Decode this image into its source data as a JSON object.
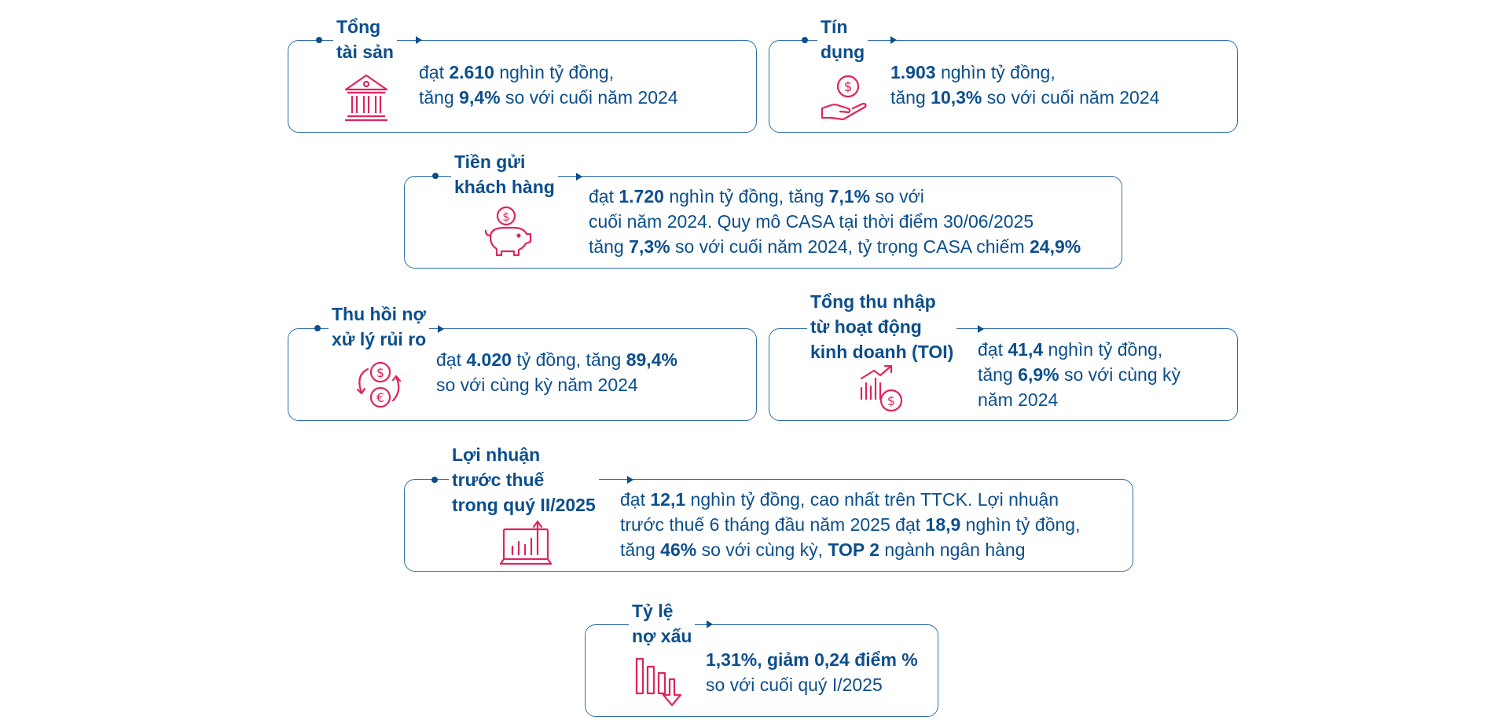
{
  "colors": {
    "primary": "#0b4e8c",
    "border": "#2f6fa8",
    "icon_accent": "#e0245e"
  },
  "cards": {
    "total_assets": {
      "title": "Tổng\ntài sản",
      "icon": "bank-icon",
      "lines": [
        [
          "đạt ",
          "2.610",
          " nghìn tỷ đồng,"
        ],
        [
          "tăng ",
          "9,4%",
          " so với cuối năm 2024"
        ]
      ]
    },
    "credit": {
      "title": "Tín\ndụng",
      "icon": "hand-coin-icon",
      "lines": [
        [
          "",
          "1.903",
          " nghìn tỷ đồng,"
        ],
        [
          "tăng ",
          "10,3%",
          " so với cuối năm 2024"
        ]
      ]
    },
    "deposits": {
      "title": "Tiền gửi\nkhách hàng",
      "icon": "piggy-bank-icon",
      "lines": [
        [
          "đạt ",
          "1.720",
          " nghìn tỷ đồng, tăng ",
          "7,1%",
          " so với"
        ],
        [
          "cuối năm 2024. Quy mô CASA tại thời điểm 30/06/2025"
        ],
        [
          "tăng ",
          "7,3%",
          " so với cuối năm 2024, tỷ trọng CASA chiếm ",
          "24,9%"
        ]
      ]
    },
    "bad_debt_recovery": {
      "title": "Thu hồi nợ\nxử lý rủi ro",
      "icon": "currency-exchange-icon",
      "lines": [
        [
          "đạt ",
          "4.020",
          " tỷ đồng, tăng ",
          "89,4%"
        ],
        [
          "so với cùng kỳ năm 2024"
        ]
      ]
    },
    "toi": {
      "title": "Tổng thu nhập\ntừ hoạt động\nkinh doanh (TOI)",
      "icon": "growth-chart-coin-icon",
      "lines": [
        [
          "đạt ",
          "41,4",
          " nghìn tỷ đồng,"
        ],
        [
          "tăng ",
          "6,9%",
          " so với cùng kỳ"
        ],
        [
          "năm 2024"
        ]
      ]
    },
    "profit": {
      "title": "Lợi nhuận\ntrước thuế\ntrong quý II/2025",
      "icon": "laptop-chart-icon",
      "lines": [
        [
          "đạt ",
          "12,1",
          " nghìn tỷ đồng, cao nhất trên TTCK. Lợi nhuận"
        ],
        [
          "trước thuế 6 tháng đầu năm 2025 đạt ",
          "18,9",
          " nghìn tỷ đồng,"
        ],
        [
          "tăng ",
          "46%",
          " so với cùng kỳ, ",
          "TOP 2",
          " ngành ngân hàng"
        ]
      ]
    },
    "npl": {
      "title": "Tỷ lệ\nnợ xấu",
      "icon": "declining-chart-icon",
      "lines": [
        [
          "",
          "1,31%, giảm 0,24 điểm %"
        ],
        [
          "so với cuối quý I/2025"
        ]
      ]
    }
  }
}
